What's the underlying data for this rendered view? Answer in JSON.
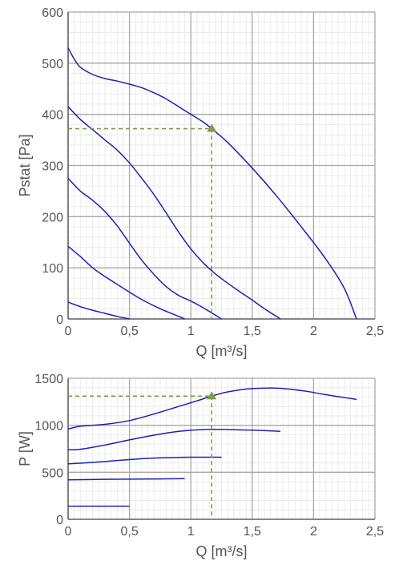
{
  "chart_data": [
    {
      "type": "line",
      "title": "",
      "xlabel": "Q [m³/s]",
      "ylabel": "Pstat [Pa]",
      "xlim": [
        0,
        2.5
      ],
      "ylim": [
        0,
        600
      ],
      "x_ticks": [
        "0",
        "0,5",
        "1",
        "1,5",
        "2",
        "2,5"
      ],
      "y_ticks": [
        "0",
        "100",
        "200",
        "300",
        "400",
        "500",
        "600"
      ],
      "grid": true,
      "line_color": "#1f1fb4",
      "marker_color": "#7f9a4a",
      "series": [
        {
          "x": [
            0,
            0.1,
            0.2,
            0.3,
            0.4,
            0.5
          ],
          "y": [
            33,
            24,
            17,
            11,
            5,
            0
          ]
        },
        {
          "x": [
            0,
            0.1,
            0.2,
            0.3,
            0.45,
            0.6,
            0.75,
            0.85,
            0.95
          ],
          "y": [
            142,
            122,
            100,
            83,
            60,
            38,
            20,
            10,
            0
          ]
        },
        {
          "x": [
            0,
            0.1,
            0.2,
            0.3,
            0.4,
            0.5,
            0.6,
            0.7,
            0.8,
            0.9,
            1.0,
            1.1,
            1.25
          ],
          "y": [
            275,
            250,
            232,
            210,
            182,
            148,
            115,
            87,
            63,
            46,
            35,
            22,
            0
          ]
        },
        {
          "x": [
            0,
            0.1,
            0.2,
            0.3,
            0.4,
            0.5,
            0.6,
            0.7,
            0.8,
            0.9,
            1.0,
            1.1,
            1.2,
            1.3,
            1.4,
            1.5,
            1.6,
            1.73
          ],
          "y": [
            415,
            390,
            370,
            350,
            330,
            305,
            275,
            243,
            207,
            170,
            137,
            110,
            88,
            70,
            53,
            37,
            20,
            0
          ]
        },
        {
          "x": [
            0,
            0.05,
            0.1,
            0.2,
            0.3,
            0.4,
            0.5,
            0.6,
            0.7,
            0.8,
            0.9,
            1.0,
            1.1,
            1.17,
            1.3,
            1.5,
            1.7,
            1.9,
            2.1,
            2.25,
            2.35
          ],
          "y": [
            530,
            508,
            492,
            478,
            470,
            465,
            459,
            452,
            442,
            430,
            415,
            400,
            385,
            372,
            345,
            295,
            240,
            180,
            117,
            60,
            0
          ]
        }
      ],
      "operating_point": {
        "x": 1.17,
        "y": 372
      }
    },
    {
      "type": "line",
      "title": "",
      "xlabel": "Q [m³/s]",
      "ylabel": "P [W]",
      "xlim": [
        0,
        2.5
      ],
      "ylim": [
        0,
        1500
      ],
      "x_ticks": [
        "0",
        "0,5",
        "1",
        "1,5",
        "2",
        "2,5"
      ],
      "y_ticks": [
        "0",
        "500",
        "1000",
        "1500"
      ],
      "grid": true,
      "line_color": "#1f1fb4",
      "marker_color": "#7f9a4a",
      "series": [
        {
          "x": [
            0,
            0.5
          ],
          "y": [
            140,
            140
          ]
        },
        {
          "x": [
            0,
            0.3,
            0.6,
            0.95
          ],
          "y": [
            420,
            425,
            428,
            432
          ]
        },
        {
          "x": [
            0,
            0.2,
            0.4,
            0.6,
            0.8,
            1.0,
            1.25
          ],
          "y": [
            590,
            605,
            625,
            645,
            655,
            660,
            660
          ]
        },
        {
          "x": [
            0,
            0.1,
            0.3,
            0.5,
            0.7,
            0.9,
            1.1,
            1.3,
            1.5,
            1.7,
            1.73
          ],
          "y": [
            740,
            745,
            790,
            845,
            895,
            935,
            955,
            955,
            948,
            938,
            935
          ]
        },
        {
          "x": [
            0,
            0.1,
            0.3,
            0.5,
            0.7,
            0.9,
            1.05,
            1.17,
            1.3,
            1.45,
            1.6,
            1.7,
            1.8,
            1.95,
            2.1,
            2.25,
            2.35
          ],
          "y": [
            960,
            990,
            1010,
            1050,
            1120,
            1200,
            1260,
            1310,
            1355,
            1385,
            1395,
            1395,
            1385,
            1360,
            1325,
            1295,
            1275
          ]
        }
      ],
      "operating_point": {
        "x": 1.17,
        "y": 1310
      }
    }
  ]
}
